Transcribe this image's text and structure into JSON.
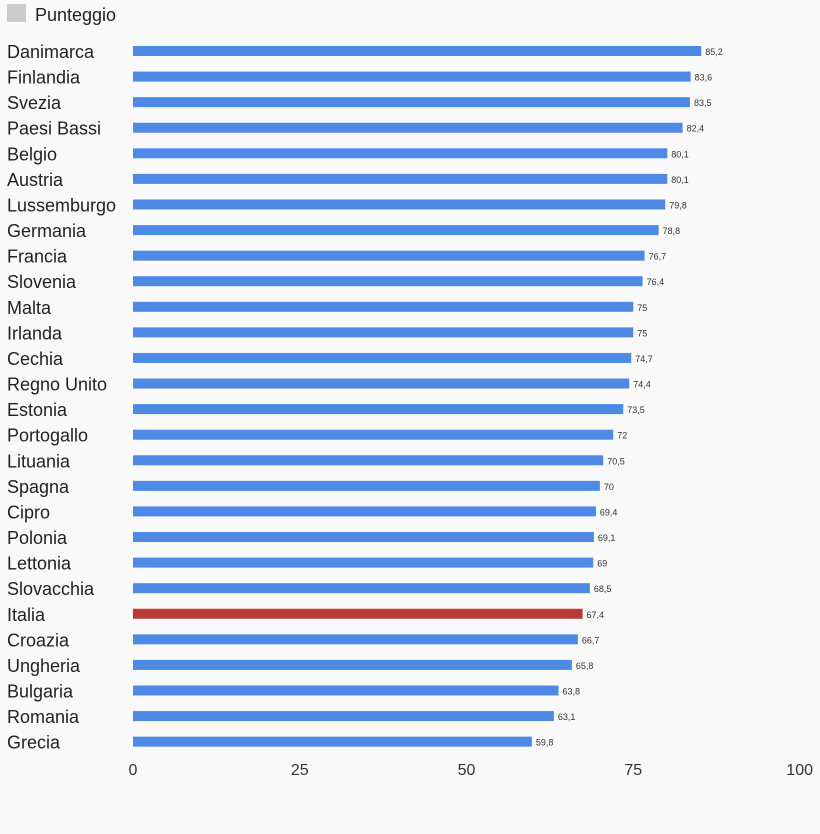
{
  "chart_data": {
    "type": "bar",
    "orientation": "horizontal",
    "legend": {
      "label": "Punteggio",
      "color": "#cccccc",
      "position": "top-left"
    },
    "categories": [
      "Danimarca",
      "Finlandia",
      "Svezia",
      "Paesi Bassi",
      "Belgio",
      "Austria",
      "Lussemburgo",
      "Germania",
      "Francia",
      "Slovenia",
      "Malta",
      "Irlanda",
      "Cechia",
      "Regno Unito",
      "Estonia",
      "Portogallo",
      "Lituania",
      "Spagna",
      "Cipro",
      "Polonia",
      "Lettonia",
      "Slovacchia",
      "Italia",
      "Croazia",
      "Ungheria",
      "Bulgaria",
      "Romania",
      "Grecia"
    ],
    "values": [
      85.2,
      83.6,
      83.5,
      82.4,
      80.1,
      80.1,
      79.8,
      78.8,
      76.7,
      76.4,
      75,
      75,
      74.7,
      74.4,
      73.5,
      72,
      70.5,
      70,
      69.4,
      69.1,
      69,
      68.5,
      67.4,
      66.7,
      65.8,
      63.8,
      63.1,
      59.8
    ],
    "value_labels": [
      "85,2",
      "83,6",
      "83,5",
      "82,4",
      "80,1",
      "80,1",
      "79,8",
      "78,8",
      "76,7",
      "76,4",
      "75",
      "75",
      "74,7",
      "74,4",
      "73,5",
      "72",
      "70,5",
      "70",
      "69,4",
      "69,1",
      "69",
      "68,5",
      "67,4",
      "66,7",
      "65,8",
      "63,8",
      "63,1",
      "59,8"
    ],
    "highlight": {
      "category": "Italia",
      "color": "#b83a36"
    },
    "bar_color": "#4f89e6",
    "xlim": [
      0,
      100
    ],
    "xticks": [
      0,
      25,
      50,
      75,
      100
    ],
    "grid": false
  }
}
